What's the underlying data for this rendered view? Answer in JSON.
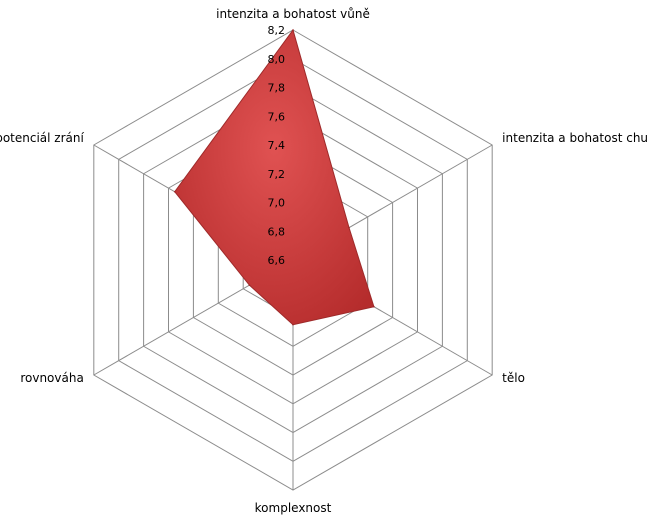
{
  "chart_data": {
    "type": "radar",
    "axes": [
      "intenzita a bohatost vůně",
      "intenzita a bohatost chuti",
      "tělo",
      "komplexnost",
      "rovnováha",
      "potenciál zrání"
    ],
    "ticks": [
      "6,6",
      "6,8",
      "7,0",
      "7,2",
      "7,4",
      "7,6",
      "7,8",
      "8,0",
      "8,2"
    ],
    "rmin": 6.6,
    "rmax": 8.2,
    "series": [
      {
        "values": [
          8.2,
          7.05,
          7.25,
          7.05,
          6.95,
          7.55
        ]
      }
    ],
    "legend": "none",
    "colors": {
      "fill_light": "#e05252",
      "fill_dark": "#b52c2c",
      "stroke": "#9e2a2a",
      "grid": "#8c8c8c",
      "axis": "#8c8c8c"
    }
  }
}
